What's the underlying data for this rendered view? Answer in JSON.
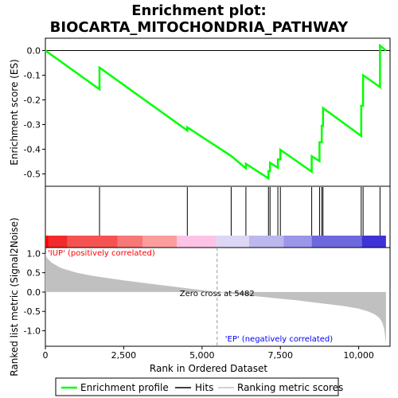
{
  "chart_data": {
    "type": "line",
    "title_lines": [
      "Enrichment plot:",
      "BIOCARTA_MITOCHONDRIA_PATHWAY"
    ],
    "es_panel": {
      "ylabel": "Enrichment score (ES)",
      "ylim": [
        -0.55,
        0.05
      ],
      "yticks": [
        0.0,
        -0.1,
        -0.2,
        -0.3,
        -0.4,
        -0.5
      ],
      "ytick_labels": [
        "0.0",
        "-0.1",
        "-0.2",
        "-0.3",
        "-0.4",
        "-0.5"
      ],
      "series": [
        {
          "name": "Enrichment profile",
          "color": "#00ff00",
          "x": [
            0,
            1728,
            1728,
            4530,
            4530,
            5930,
            5930,
            6400,
            6400,
            7120,
            7120,
            7170,
            7170,
            7420,
            7420,
            7500,
            7500,
            8500,
            8500,
            8750,
            8750,
            8820,
            8820,
            8860,
            8860,
            10080,
            10080,
            10140,
            10140,
            10680,
            10680,
            10870
          ],
          "y": [
            0.0,
            -0.157,
            -0.069,
            -0.324,
            -0.311,
            -0.427,
            -0.427,
            -0.477,
            -0.459,
            -0.518,
            -0.489,
            -0.489,
            -0.455,
            -0.475,
            -0.441,
            -0.441,
            -0.402,
            -0.491,
            -0.428,
            -0.448,
            -0.372,
            -0.372,
            -0.305,
            -0.305,
            -0.233,
            -0.346,
            -0.224,
            -0.224,
            -0.1,
            -0.148,
            0.02,
            0.0
          ]
        }
      ]
    },
    "hits": {
      "name": "Hits",
      "positions": [
        1728,
        4530,
        5930,
        6400,
        7120,
        7170,
        7420,
        7500,
        8500,
        8750,
        8820,
        8860,
        10080,
        10140,
        10680
      ]
    },
    "ranked_bar": {
      "colors": [
        "#ff0000",
        "#f22a2a",
        "#f55252",
        "#f87777",
        "#fb9d9d",
        "#fdc3e6",
        "#ddd7f5",
        "#bcb8ee",
        "#9b96e7",
        "#6e68de",
        "#3e33d6"
      ],
      "boundaries": [
        0,
        100,
        700,
        2300,
        3100,
        4200,
        5450,
        6500,
        7600,
        8500,
        10100,
        10870
      ]
    },
    "metric_panel": {
      "ylabel": "Ranked list metric (Signal2Noise)",
      "xlabel": "Rank in Ordered Dataset",
      "ylim": [
        -1.4,
        1.15
      ],
      "yticks": [
        1.0,
        0.5,
        0.0,
        -0.5,
        -1.0
      ],
      "ytick_labels": [
        "1.0",
        "0.5",
        "0.0",
        "-0.5",
        "-1.0"
      ],
      "xlim": [
        0,
        11000
      ],
      "xticks": [
        0,
        2500,
        5000,
        7500,
        10000
      ],
      "xtick_labels": [
        "0",
        "2,500",
        "5,000",
        "7,500",
        "10,000"
      ],
      "fill_color": "#c0c0c0",
      "metric_curve": {
        "x": [
          0,
          50,
          200,
          500,
          1000,
          1500,
          2000,
          2500,
          3000,
          3500,
          4000,
          4500,
          5000,
          5482,
          6000,
          6500,
          7000,
          7500,
          8000,
          8500,
          9000,
          9500,
          10000,
          10300,
          10500,
          10650,
          10750,
          10820,
          10870
        ],
        "y": [
          1.0,
          0.88,
          0.76,
          0.62,
          0.5,
          0.42,
          0.36,
          0.3,
          0.25,
          0.2,
          0.15,
          0.1,
          0.05,
          0.0,
          -0.05,
          -0.09,
          -0.13,
          -0.17,
          -0.21,
          -0.26,
          -0.31,
          -0.36,
          -0.43,
          -0.5,
          -0.57,
          -0.66,
          -0.78,
          -0.98,
          -1.35
        ]
      },
      "zero_cross_rank": 5482,
      "zero_cross_label": "Zero cross at 5482",
      "label_pos": "'IUP' (positively correlated)",
      "label_neg": "'EP' (negatively correlated)",
      "label_pos_color": "#ff0000",
      "label_neg_color": "#0000ff"
    },
    "x_range": [
      0,
      11000
    ],
    "legend": {
      "placement": "bottom",
      "items": [
        {
          "label": "Enrichment profile",
          "color": "#00ff00"
        },
        {
          "label": "Hits",
          "color": "#000000"
        },
        {
          "label": "Ranking metric scores",
          "color": "#c0c0c0"
        }
      ]
    }
  }
}
